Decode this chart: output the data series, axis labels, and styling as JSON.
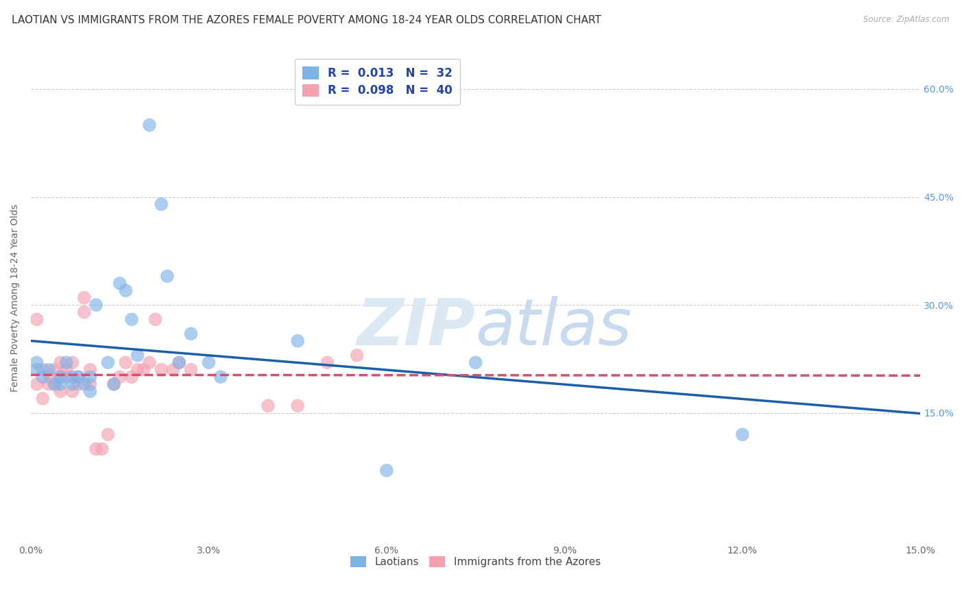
{
  "title": "LAOTIAN VS IMMIGRANTS FROM THE AZORES FEMALE POVERTY AMONG 18-24 YEAR OLDS CORRELATION CHART",
  "source": "Source: ZipAtlas.com",
  "xlabel": "",
  "ylabel": "Female Poverty Among 18-24 Year Olds",
  "xlim": [
    0,
    0.15
  ],
  "ylim": [
    -0.03,
    0.65
  ],
  "xticks": [
    0.0,
    0.03,
    0.06,
    0.09,
    0.12,
    0.15
  ],
  "xticklabels": [
    "0.0%",
    "3.0%",
    "6.0%",
    "9.0%",
    "12.0%",
    "15.0%"
  ],
  "yticks_right": [
    0.15,
    0.3,
    0.45,
    0.6
  ],
  "ytick_right_labels": [
    "15.0%",
    "30.0%",
    "45.0%",
    "60.0%"
  ],
  "grid_color": "#cccccc",
  "background_color": "#ffffff",
  "series1_label": "Laotians",
  "series1_color": "#7eb3e8",
  "series1_R": "0.013",
  "series1_N": "32",
  "series1_x": [
    0.001,
    0.001,
    0.002,
    0.003,
    0.004,
    0.005,
    0.005,
    0.006,
    0.007,
    0.007,
    0.008,
    0.009,
    0.01,
    0.01,
    0.011,
    0.013,
    0.014,
    0.015,
    0.016,
    0.017,
    0.018,
    0.02,
    0.022,
    0.023,
    0.025,
    0.027,
    0.03,
    0.032,
    0.045,
    0.06,
    0.075,
    0.12
  ],
  "series1_y": [
    0.22,
    0.21,
    0.2,
    0.21,
    0.19,
    0.2,
    0.19,
    0.22,
    0.2,
    0.19,
    0.2,
    0.19,
    0.2,
    0.18,
    0.3,
    0.22,
    0.19,
    0.33,
    0.32,
    0.28,
    0.23,
    0.55,
    0.44,
    0.34,
    0.22,
    0.26,
    0.22,
    0.2,
    0.25,
    0.07,
    0.22,
    0.12
  ],
  "series2_label": "Immigrants from the Azores",
  "series2_color": "#f4a0b0",
  "series2_R": "0.098",
  "series2_N": "40",
  "series2_x": [
    0.001,
    0.001,
    0.002,
    0.002,
    0.003,
    0.003,
    0.004,
    0.004,
    0.005,
    0.005,
    0.005,
    0.006,
    0.006,
    0.007,
    0.007,
    0.008,
    0.008,
    0.009,
    0.009,
    0.01,
    0.01,
    0.011,
    0.012,
    0.013,
    0.014,
    0.015,
    0.016,
    0.017,
    0.018,
    0.019,
    0.02,
    0.021,
    0.022,
    0.024,
    0.025,
    0.027,
    0.04,
    0.045,
    0.05,
    0.055
  ],
  "series2_y": [
    0.28,
    0.19,
    0.21,
    0.17,
    0.2,
    0.19,
    0.21,
    0.19,
    0.22,
    0.2,
    0.18,
    0.21,
    0.2,
    0.22,
    0.18,
    0.2,
    0.19,
    0.31,
    0.29,
    0.21,
    0.19,
    0.1,
    0.1,
    0.12,
    0.19,
    0.2,
    0.22,
    0.2,
    0.21,
    0.21,
    0.22,
    0.28,
    0.21,
    0.21,
    0.22,
    0.21,
    0.16,
    0.16,
    0.22,
    0.23
  ],
  "line_color_blue": "#1a5fa8",
  "line_color_pink": "#d45070",
  "line_dash_pink": true,
  "legend_text_color": "#2244aa",
  "watermark_zip": "ZIP",
  "watermark_atlas": "atlas",
  "title_fontsize": 11,
  "axis_label_fontsize": 10,
  "tick_fontsize": 10,
  "marker_size": 200,
  "right_tick_color": "#5599dd"
}
